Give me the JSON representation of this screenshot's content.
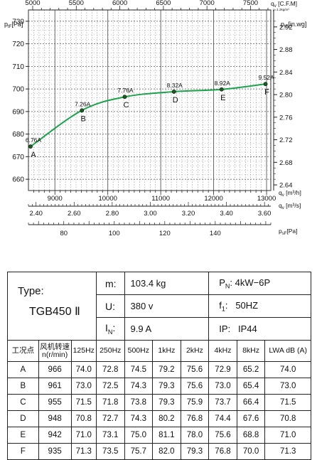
{
  "chart_data": {
    "type": "line",
    "x_axes": {
      "cfm": {
        "label": "q",
        "label_sub": "v",
        "unit": "[C.F.M]",
        "note": "ρ=1.2kg/m³",
        "range": [
          5000,
          7700
        ],
        "ticks": [
          5000,
          5500,
          6000,
          6500,
          7000,
          7500
        ],
        "tick_labels": [
          "5000",
          "5500",
          "6000",
          "6500",
          "7000",
          "7500"
        ]
      },
      "m3h": {
        "label": "q",
        "label_sub": "v",
        "unit": "[m³/h]",
        "range": [
          8500,
          13080
        ],
        "ticks": [
          9000,
          10000,
          11000,
          12000,
          13000
        ],
        "tick_labels": [
          "9000",
          "10000",
          "11000",
          "12000",
          "13000"
        ]
      },
      "m3s": {
        "label": "q",
        "label_sub": "v",
        "unit": "[m³/s]",
        "range": [
          2.36,
          3.633
        ],
        "ticks": [
          2.4,
          2.6,
          2.8,
          3.0,
          3.2,
          3.4,
          3.6
        ],
        "tick_labels": [
          "2.40",
          "2.60",
          "2.80",
          "3.00",
          "3.20",
          "3.40",
          "3.60"
        ]
      },
      "pa_bottom": {
        "label": "p",
        "label_sub": "sF",
        "unit": "[Pa]",
        "range": [
          66,
          162
        ],
        "ticks": [
          80,
          100,
          120,
          140
        ],
        "tick_labels": [
          "80",
          "100",
          "120",
          "140"
        ]
      }
    },
    "y_axes": {
      "pa": {
        "label": "p",
        "label_sub": "tF",
        "unit": "[Pa]",
        "range": [
          655,
          735
        ],
        "ticks": [
          660,
          670,
          680,
          690,
          700,
          710,
          720,
          730
        ],
        "tick_labels": [
          "660",
          "670",
          "680",
          "690",
          "700",
          "710",
          "720",
          "730"
        ]
      },
      "inwg": {
        "label": "p",
        "label_sub": "tF",
        "unit": "[in.wg]",
        "range": [
          2.63,
          2.95
        ],
        "ticks": [
          2.64,
          2.68,
          2.72,
          2.76,
          2.8,
          2.84,
          2.88,
          2.92
        ],
        "tick_labels": [
          "2.64",
          "2.68",
          "2.72",
          "2.76",
          "2.80",
          "2.84",
          "2.88",
          "2.92"
        ]
      }
    },
    "series": [
      {
        "points": [
          {
            "x": 8540,
            "y": 674.5,
            "label": "A",
            "current": "6.76A"
          },
          {
            "x": 9510,
            "y": 690.5,
            "label": "B",
            "current": "7.26A"
          },
          {
            "x": 10320,
            "y": 696.5,
            "label": "C",
            "current": "7.76A"
          },
          {
            "x": 11250,
            "y": 698.8,
            "label": "D",
            "current": "8.32A"
          },
          {
            "x": 12150,
            "y": 699.8,
            "label": "E",
            "current": "8.92A"
          },
          {
            "x": 12980,
            "y": 702.2,
            "label": "F",
            "current": "9.52A"
          }
        ]
      }
    ],
    "grid": true,
    "colors": {
      "curve": "#1aa34a",
      "grid": "#555555"
    }
  },
  "spec": {
    "type_label": "Type:",
    "model": "TGB450 Ⅱ",
    "mass_label": "m:",
    "mass_value": "103.4 kg",
    "power_label": "P",
    "power_sub": "N",
    "power_value": "4kW−6P",
    "voltage_label": "U:",
    "voltage_value": "380 v",
    "freq_label": "f",
    "freq_sub": "1",
    "freq_value": "50HZ",
    "current_label": "I",
    "current_sub": "N",
    "current_value": "9.9 A",
    "ip_label": "IP:",
    "ip_value": "IP44"
  },
  "noise_table": {
    "headers": [
      "工况点",
      "风机转速 n(r/min)",
      "125Hz",
      "250Hz",
      "500Hz",
      "1kHz",
      "2kHz",
      "4kHz",
      "8kHz",
      "LWA dB (A)"
    ],
    "rows": [
      [
        "A",
        "966",
        "74.0",
        "72.8",
        "74.5",
        "79.2",
        "75.6",
        "72.9",
        "65.2",
        "74.0"
      ],
      [
        "B",
        "961",
        "73.0",
        "72.5",
        "74.3",
        "79.3",
        "75.6",
        "73.0",
        "65.4",
        "73.0"
      ],
      [
        "C",
        "955",
        "71.5",
        "71.8",
        "73.8",
        "79.3",
        "75.9",
        "73.7",
        "66.4",
        "71.5"
      ],
      [
        "D",
        "948",
        "70.8",
        "72.7",
        "74.3",
        "80.2",
        "76.8",
        "74.4",
        "67.6",
        "70.8"
      ],
      [
        "E",
        "942",
        "71.0",
        "73.1",
        "75.0",
        "81.1",
        "78.0",
        "75.6",
        "68.8",
        "71.0"
      ],
      [
        "F",
        "935",
        "71.3",
        "73.5",
        "75.7",
        "82.0",
        "79.3",
        "76.8",
        "70.0",
        "71.3"
      ]
    ]
  }
}
